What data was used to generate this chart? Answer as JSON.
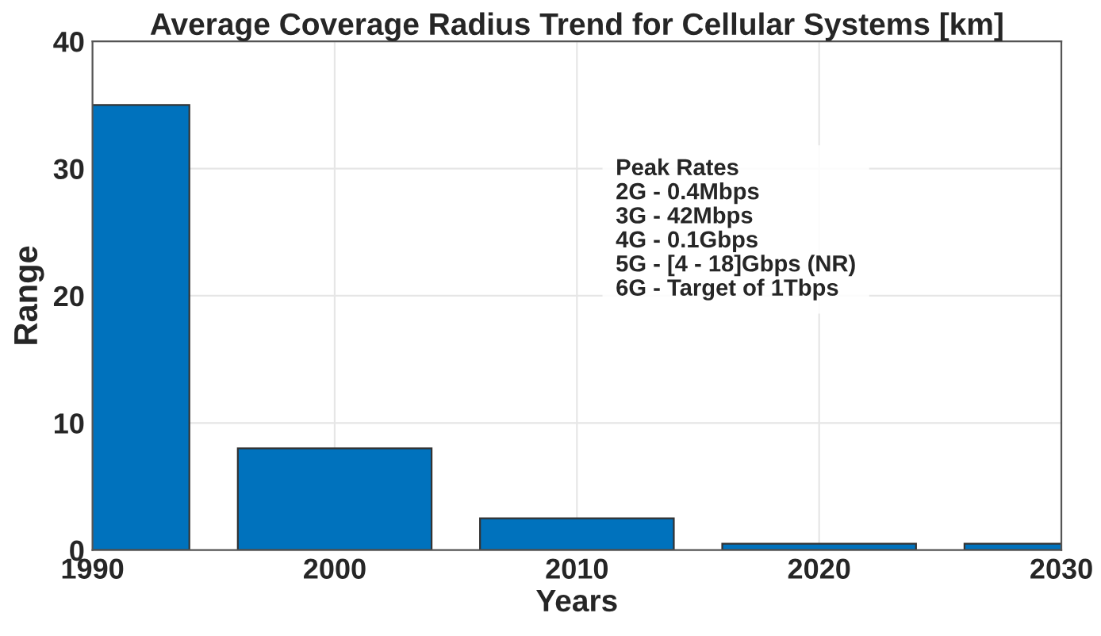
{
  "chart_data": {
    "type": "bar",
    "title": "Average Coverage Radius Trend for Cellular Systems [km]",
    "xlabel": "Years",
    "ylabel": "Range",
    "x": [
      1990,
      2000,
      2010,
      2020,
      2030
    ],
    "values": [
      35,
      8,
      2.5,
      0.5,
      0.5
    ],
    "color": "#0072bd",
    "xlim": [
      1990,
      2030
    ],
    "xticks": [
      1990,
      2000,
      2010,
      2020,
      2030
    ],
    "ylim": [
      0,
      40
    ],
    "yticks": [
      0,
      10,
      20,
      30,
      40
    ],
    "grid": true,
    "annotations": [
      "Peak Rates\n2G - 0.4Mbps\n3G - 42Mbps\n4G - 0.1Gbps\n5G - [4 - 18]Gbps (NR)\n6G - Target of 1Tbps"
    ]
  }
}
